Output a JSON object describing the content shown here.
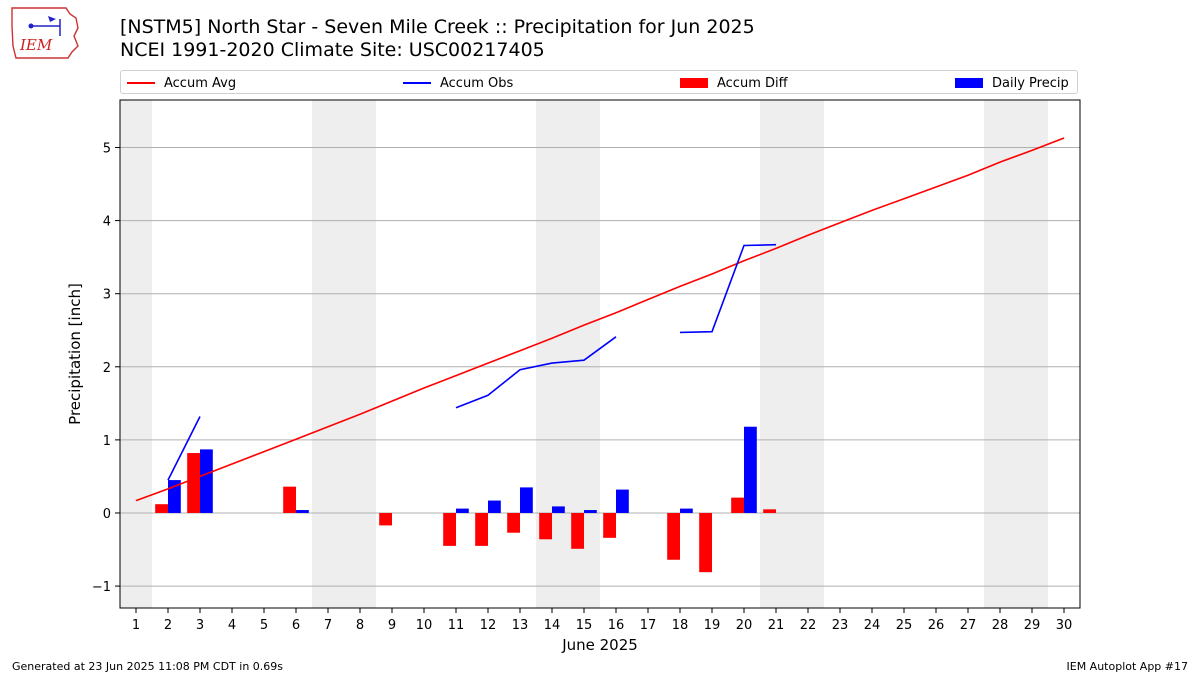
{
  "logo": {
    "text": "IEM"
  },
  "title": {
    "line1": "[NSTM5] North Star - Seven Mile Creek :: Precipitation for Jun 2025",
    "line2": "NCEI 1991-2020 Climate Site: USC00217405"
  },
  "legend": [
    {
      "label": "Accum Avg",
      "kind": "line",
      "color": "#ff0000"
    },
    {
      "label": "Accum Obs",
      "kind": "line",
      "color": "#0000ff"
    },
    {
      "label": "Accum Diff",
      "kind": "box",
      "color": "#ff0000"
    },
    {
      "label": "Daily Precip",
      "kind": "box",
      "color": "#0000ff"
    }
  ],
  "chart_data": {
    "type": "bar",
    "xlabel": "June 2025",
    "ylabel": "Precipitation [inch]",
    "x": [
      1,
      2,
      3,
      4,
      5,
      6,
      7,
      8,
      9,
      10,
      11,
      12,
      13,
      14,
      15,
      16,
      17,
      18,
      19,
      20,
      21,
      22,
      23,
      24,
      25,
      26,
      27,
      28,
      29,
      30
    ],
    "xlim": [
      0.5,
      30.5
    ],
    "ylim": [
      -1.3,
      5.65
    ],
    "yticks": [
      -1,
      0,
      1,
      2,
      3,
      4,
      5
    ],
    "ytick_labels": [
      "−1",
      "0",
      "1",
      "2",
      "3",
      "4",
      "5"
    ],
    "grid": "horizontal",
    "weekend_days": [
      1,
      7,
      8,
      14,
      15,
      21,
      22,
      28,
      29
    ],
    "series": [
      {
        "name": "Accum Avg",
        "kind": "line",
        "color": "#ff0000",
        "values": [
          0.17,
          0.33,
          0.5,
          0.67,
          0.84,
          1.01,
          1.18,
          1.35,
          1.53,
          1.71,
          1.88,
          2.05,
          2.22,
          2.39,
          2.57,
          2.74,
          2.92,
          3.1,
          3.27,
          3.45,
          3.62,
          3.8,
          3.97,
          4.14,
          4.3,
          4.46,
          4.62,
          4.8,
          4.96,
          5.13
        ]
      },
      {
        "name": "Accum Obs",
        "kind": "line",
        "color": "#0000ff",
        "values": [
          null,
          0.45,
          1.32,
          null,
          null,
          null,
          null,
          null,
          null,
          null,
          1.44,
          1.61,
          1.96,
          2.05,
          2.09,
          2.41,
          null,
          2.47,
          2.48,
          3.66,
          3.67,
          null,
          null,
          null,
          null,
          null,
          null,
          null,
          null,
          null
        ]
      },
      {
        "name": "Accum Diff",
        "kind": "bar",
        "color": "#ff0000",
        "values": [
          null,
          0.12,
          0.82,
          null,
          null,
          0.36,
          null,
          null,
          -0.17,
          null,
          -0.45,
          -0.45,
          -0.27,
          -0.36,
          -0.49,
          -0.34,
          null,
          -0.64,
          -0.81,
          0.21,
          0.05,
          null,
          null,
          null,
          null,
          null,
          null,
          null,
          null,
          null
        ]
      },
      {
        "name": "Daily Precip",
        "kind": "bar",
        "color": "#0000ff",
        "values": [
          null,
          0.45,
          0.87,
          null,
          null,
          0.04,
          null,
          null,
          null,
          null,
          0.06,
          0.17,
          0.35,
          0.09,
          0.04,
          0.32,
          null,
          0.06,
          null,
          1.18,
          null,
          null,
          null,
          null,
          null,
          null,
          null,
          null,
          null,
          null
        ]
      }
    ]
  },
  "footer": {
    "left": "Generated at 23 Jun 2025 11:08 PM CDT in 0.69s",
    "right": "IEM Autoplot App #17"
  }
}
